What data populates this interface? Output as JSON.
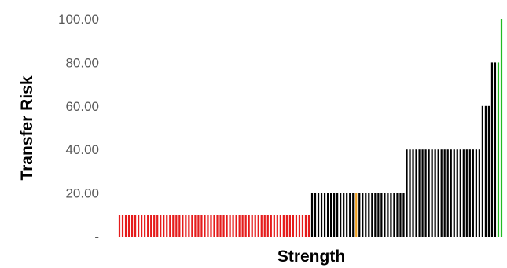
{
  "chart_data": {
    "type": "bar",
    "xlabel": "Strength",
    "ylabel": "Transfer Risk",
    "ylim": [
      0,
      100
    ],
    "yticks": [
      0,
      20,
      40,
      60,
      80,
      100
    ],
    "ytick_labels": [
      "-",
      "20.00",
      "40.00",
      "60.00",
      "80.00",
      "100.00"
    ],
    "grid": false,
    "colors": {
      "red": "#e51b1b",
      "black": "#000000",
      "orange": "#f0a020",
      "green": "#22bb22"
    },
    "values": [
      10,
      10,
      10,
      10,
      10,
      10,
      10,
      10,
      10,
      10,
      10,
      10,
      10,
      10,
      10,
      10,
      10,
      10,
      10,
      10,
      10,
      10,
      10,
      10,
      10,
      10,
      10,
      10,
      10,
      10,
      10,
      10,
      10,
      10,
      10,
      10,
      10,
      10,
      10,
      10,
      10,
      10,
      10,
      10,
      10,
      10,
      10,
      10,
      10,
      10,
      10,
      10,
      10,
      10,
      10,
      10,
      10,
      10,
      10,
      10,
      10,
      20,
      20,
      20,
      20,
      20,
      20,
      20,
      20,
      20,
      20,
      20,
      20,
      20,
      20,
      20,
      20,
      20,
      20,
      20,
      20,
      20,
      20,
      20,
      20,
      20,
      20,
      20,
      20,
      20,
      20,
      40,
      40,
      40,
      40,
      40,
      40,
      40,
      40,
      40,
      40,
      40,
      40,
      40,
      40,
      40,
      40,
      40,
      40,
      40,
      40,
      40,
      40,
      40,
      40,
      60,
      60,
      60,
      80,
      80,
      80,
      100
    ],
    "color_keys": [
      "red",
      "red",
      "red",
      "red",
      "red",
      "red",
      "red",
      "red",
      "red",
      "red",
      "red",
      "red",
      "red",
      "red",
      "red",
      "red",
      "red",
      "red",
      "red",
      "red",
      "red",
      "red",
      "red",
      "red",
      "red",
      "red",
      "red",
      "red",
      "red",
      "red",
      "red",
      "red",
      "red",
      "red",
      "red",
      "red",
      "red",
      "red",
      "red",
      "red",
      "red",
      "red",
      "red",
      "red",
      "red",
      "red",
      "red",
      "red",
      "red",
      "red",
      "red",
      "red",
      "red",
      "red",
      "red",
      "red",
      "red",
      "red",
      "red",
      "red",
      "red",
      "black",
      "black",
      "black",
      "black",
      "black",
      "black",
      "black",
      "black",
      "black",
      "black",
      "black",
      "black",
      "black",
      "black",
      "orange",
      "black",
      "black",
      "black",
      "black",
      "black",
      "black",
      "black",
      "black",
      "black",
      "black",
      "black",
      "black",
      "black",
      "black",
      "black",
      "black",
      "black",
      "black",
      "black",
      "black",
      "black",
      "black",
      "black",
      "black",
      "black",
      "black",
      "black",
      "black",
      "black",
      "black",
      "black",
      "black",
      "black",
      "black",
      "black",
      "black",
      "black",
      "black",
      "black",
      "black",
      "black",
      "black",
      "black",
      "black",
      "green",
      "green",
      "green",
      "green",
      "green",
      "green",
      "green"
    ]
  }
}
